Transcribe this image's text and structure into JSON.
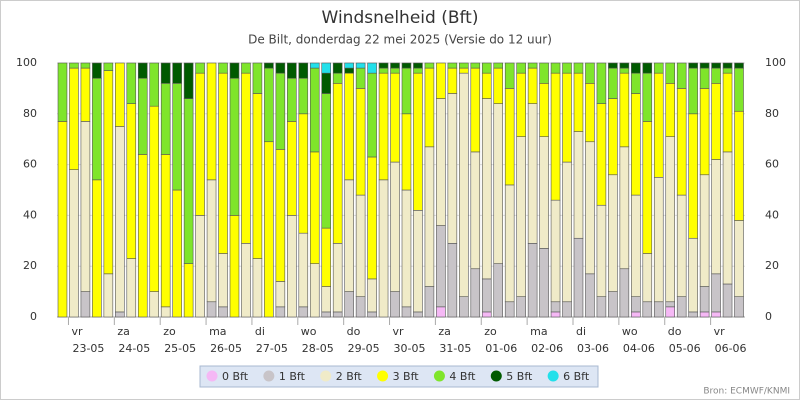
{
  "chart_data": {
    "type": "stacked_bar",
    "title": "Windsnelheid (Bft)",
    "subtitle": "De Bilt, donderdag 22 mei 2025 (Versie do 12 uur)",
    "source": "Bron: ECMWF/KNMI",
    "x_labels": [
      {
        "day": "vr",
        "date": "23-05"
      },
      {
        "day": "za",
        "date": "24-05"
      },
      {
        "day": "zo",
        "date": "25-05"
      },
      {
        "day": "ma",
        "date": "26-05"
      },
      {
        "day": "di",
        "date": "27-05"
      },
      {
        "day": "wo",
        "date": "28-05"
      },
      {
        "day": "do",
        "date": "29-05"
      },
      {
        "day": "vr",
        "date": "30-05"
      },
      {
        "day": "za",
        "date": "31-05"
      },
      {
        "day": "zo",
        "date": "01-06"
      },
      {
        "day": "ma",
        "date": "02-06"
      },
      {
        "day": "di",
        "date": "03-06"
      },
      {
        "day": "wo",
        "date": "04-06"
      },
      {
        "day": "do",
        "date": "05-06"
      },
      {
        "day": "vr",
        "date": "06-06"
      }
    ],
    "ylim": [
      0,
      100
    ],
    "yticks": [
      0,
      20,
      40,
      60,
      80,
      100
    ],
    "grid": true,
    "series": [
      {
        "name": "0 Bft",
        "color": "#f5b8f5",
        "values": [
          0,
          0,
          0,
          0,
          0,
          0,
          0,
          0,
          0,
          0,
          0,
          0,
          0,
          0,
          0,
          0,
          0,
          0,
          0,
          0,
          0,
          0,
          0,
          0,
          0,
          0,
          0,
          0,
          0,
          0,
          0,
          0,
          0,
          4,
          0,
          0,
          0,
          2,
          0,
          0,
          0,
          0,
          0,
          2,
          0,
          0,
          0,
          0,
          0,
          0,
          2,
          0,
          0,
          4,
          0,
          0,
          2,
          2,
          0,
          0
        ]
      },
      {
        "name": "1 Bft",
        "color": "#c8c4c8",
        "values": [
          0,
          0,
          10,
          0,
          0,
          2,
          0,
          0,
          0,
          0,
          0,
          0,
          0,
          6,
          4,
          0,
          0,
          0,
          0,
          4,
          0,
          4,
          0,
          2,
          2,
          10,
          8,
          2,
          0,
          10,
          4,
          2,
          12,
          32,
          29,
          8,
          19,
          13,
          21,
          6,
          8,
          29,
          27,
          4,
          6,
          31,
          17,
          8,
          10,
          19,
          6,
          6,
          6,
          2,
          8,
          2,
          10,
          15,
          13,
          8
        ]
      },
      {
        "name": "2 Bft",
        "color": "#f0ebc8",
        "values": [
          0,
          58,
          67,
          0,
          17,
          73,
          23,
          0,
          10,
          4,
          0,
          0,
          40,
          48,
          21,
          0,
          29,
          23,
          0,
          10,
          40,
          29,
          21,
          10,
          27,
          44,
          40,
          13,
          54,
          51,
          46,
          40,
          55,
          50,
          59,
          88,
          46,
          71,
          63,
          46,
          63,
          55,
          44,
          40,
          55,
          42,
          52,
          36,
          46,
          48,
          40,
          19,
          49,
          65,
          40,
          29,
          44,
          45,
          52,
          30
        ]
      },
      {
        "name": "3 Bft",
        "color": "#ffff00",
        "values": [
          77,
          40,
          21,
          54,
          80,
          25,
          61,
          64,
          73,
          60,
          50,
          21,
          56,
          46,
          71,
          40,
          67,
          65,
          69,
          52,
          37,
          47,
          44,
          23,
          63,
          42,
          42,
          48,
          42,
          35,
          30,
          54,
          31,
          14,
          10,
          2,
          33,
          10,
          14,
          38,
          25,
          14,
          21,
          50,
          35,
          23,
          23,
          40,
          30,
          29,
          40,
          52,
          41,
          21,
          42,
          49,
          34,
          30,
          31,
          43
        ]
      },
      {
        "name": "4 Bft",
        "color": "#7fe52b",
        "values": [
          23,
          2,
          2,
          40,
          3,
          0,
          16,
          30,
          17,
          28,
          42,
          65,
          4,
          0,
          4,
          54,
          4,
          12,
          29,
          30,
          17,
          14,
          33,
          53,
          4,
          0,
          8,
          33,
          2,
          2,
          18,
          2,
          2,
          0,
          2,
          2,
          2,
          4,
          2,
          10,
          4,
          2,
          8,
          4,
          4,
          4,
          8,
          16,
          12,
          2,
          8,
          19,
          4,
          8,
          10,
          18,
          8,
          6,
          2,
          17
        ]
      },
      {
        "name": "5 Bft",
        "color": "#005a00",
        "values": [
          0,
          0,
          0,
          6,
          0,
          0,
          0,
          6,
          0,
          8,
          8,
          14,
          0,
          0,
          0,
          6,
          0,
          0,
          2,
          4,
          6,
          6,
          0,
          8,
          4,
          2,
          0,
          0,
          2,
          2,
          2,
          2,
          0,
          0,
          0,
          0,
          0,
          0,
          0,
          0,
          0,
          0,
          0,
          0,
          0,
          0,
          0,
          0,
          2,
          2,
          4,
          4,
          0,
          0,
          0,
          2,
          2,
          2,
          2,
          2
        ]
      },
      {
        "name": "6 Bft",
        "color": "#22e0ea",
        "values": [
          0,
          0,
          0,
          0,
          0,
          0,
          0,
          0,
          0,
          0,
          0,
          0,
          0,
          0,
          0,
          0,
          0,
          0,
          0,
          0,
          0,
          0,
          2,
          4,
          0,
          2,
          2,
          4,
          0,
          0,
          0,
          0,
          0,
          0,
          0,
          0,
          0,
          0,
          0,
          0,
          0,
          0,
          0,
          0,
          0,
          0,
          0,
          0,
          0,
          0,
          0,
          0,
          0,
          0,
          0,
          0,
          0,
          0,
          0,
          0
        ]
      }
    ]
  }
}
